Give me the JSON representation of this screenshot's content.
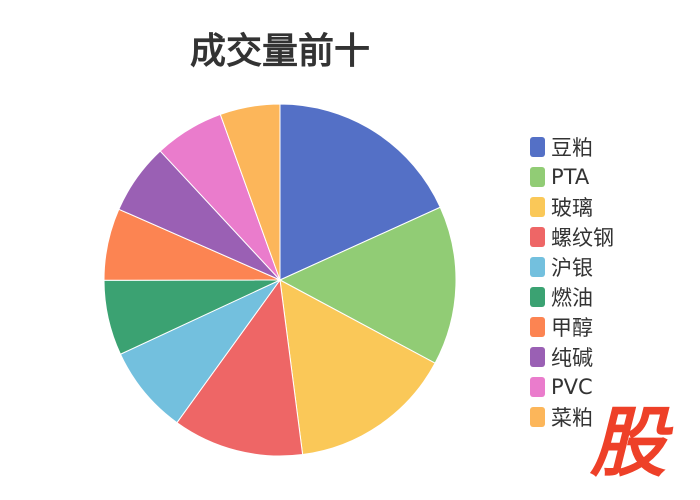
{
  "chart_data": {
    "type": "pie",
    "title": "成交量前十",
    "categories": [
      "豆粕",
      "PTA",
      "玻璃",
      "螺纹钢",
      "沪银",
      "燃油",
      "甲醇",
      "纯碱",
      "PVC",
      "菜粕"
    ],
    "values": [
      18.2,
      14.6,
      15.1,
      12.0,
      8.1,
      6.9,
      6.6,
      6.5,
      6.4,
      5.5
    ],
    "value_unit": "percent (estimated from slice angles)",
    "colors": [
      "#5470c6",
      "#91cc75",
      "#fac858",
      "#ee6666",
      "#73c0de",
      "#3ba272",
      "#fc8452",
      "#9a60b4",
      "#ea7ccc",
      "#fcb65a"
    ],
    "legend_position": "right",
    "start_angle": "top, clockwise"
  },
  "logo": {
    "text": "股",
    "color": "#ee4028"
  }
}
